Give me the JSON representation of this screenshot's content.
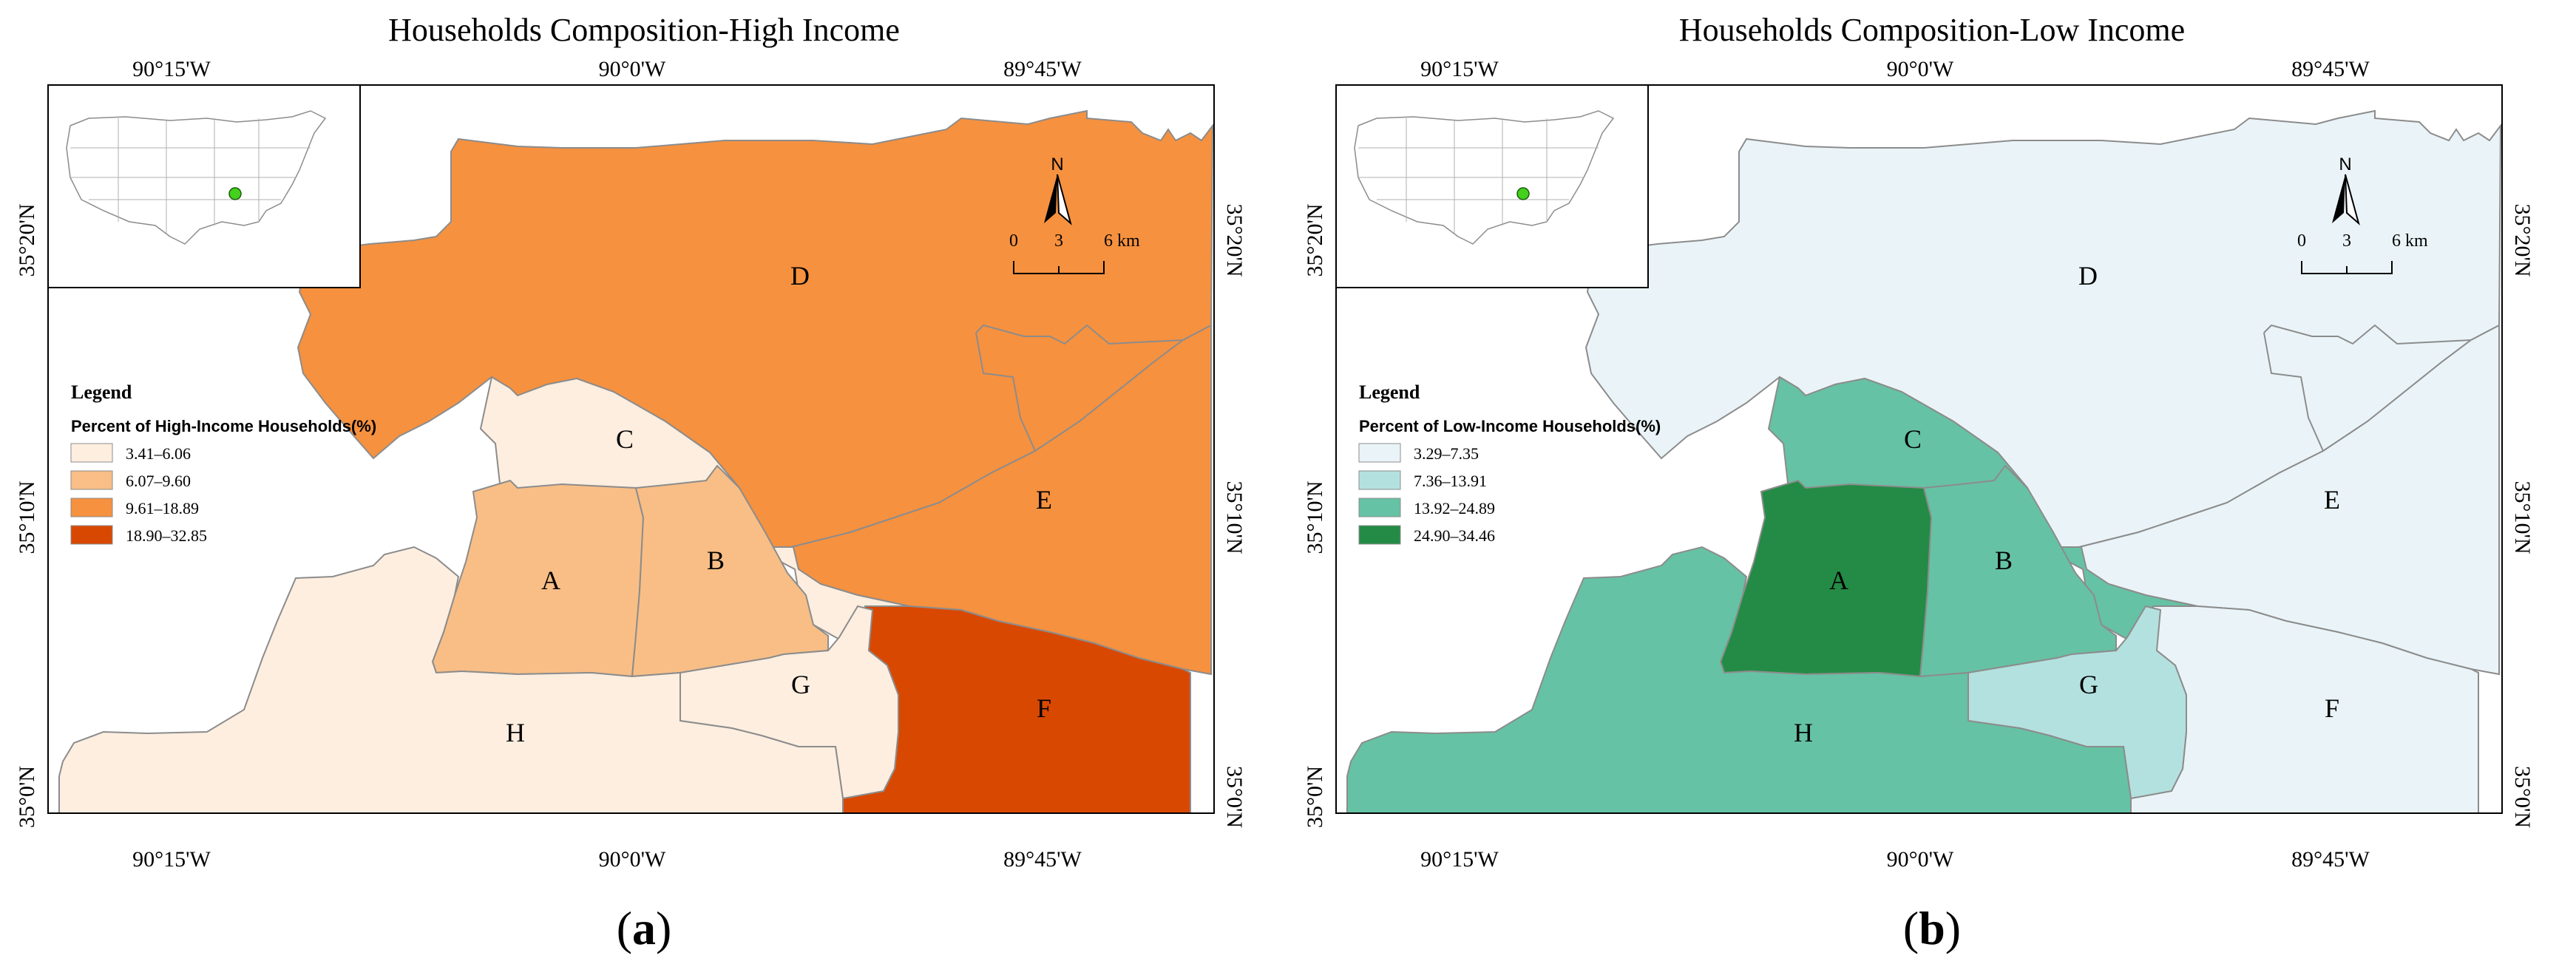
{
  "panels": [
    {
      "id": "a",
      "title": "Households Composition-High Income",
      "caption_open": "(",
      "caption_letter": "a",
      "caption_close": ")",
      "top_ticks": [
        "90°15'W",
        "90°0'W",
        "89°45'W"
      ],
      "bottom_ticks": [
        "90°15'W",
        "90°0'W",
        "89°45'W"
      ],
      "left_ticks": [
        "35°20'N",
        "35°10'N",
        "35°0'N"
      ],
      "right_ticks": [
        "35°20'N",
        "35°10'N",
        "35°0'N"
      ],
      "legend_title": "Legend",
      "legend_subtitle": "Percent of High-Income Households(%)",
      "legend_items": [
        {
          "label": "3.41–6.06",
          "color": "#fdeee0"
        },
        {
          "label": "6.07–9.60",
          "color": "#f8be86"
        },
        {
          "label": "9.61–18.89",
          "color": "#f6913f"
        },
        {
          "label": "18.90–32.85",
          "color": "#d94801"
        }
      ],
      "zone_colors": {
        "A": "#f8be86",
        "B": "#f8be86",
        "C": "#fdeee0",
        "D": "#f6913f",
        "E": "#f6913f",
        "F": "#d94801",
        "G": "#fdeee0",
        "H": "#fdeee0"
      },
      "zone_labels": [
        "A",
        "B",
        "C",
        "D",
        "E",
        "F",
        "G",
        "H"
      ],
      "north": "N",
      "scale_labels": [
        "0",
        "3",
        "6 km"
      ]
    },
    {
      "id": "b",
      "title": "Households Composition-Low Income",
      "caption_open": "(",
      "caption_letter": "b",
      "caption_close": ")",
      "top_ticks": [
        "90°15'W",
        "90°0'W",
        "89°45'W"
      ],
      "bottom_ticks": [
        "90°15'W",
        "90°0'W",
        "89°45'W"
      ],
      "left_ticks": [
        "35°20'N",
        "35°10'N",
        "35°0'N"
      ],
      "right_ticks": [
        "35°20'N",
        "35°10'N",
        "35°0'N"
      ],
      "legend_title": "Legend",
      "legend_subtitle": "Percent of Low-Income Households(%)",
      "legend_items": [
        {
          "label": "3.29–7.35",
          "color": "#eaf4f8"
        },
        {
          "label": "7.36–13.91",
          "color": "#b3e1df"
        },
        {
          "label": "13.92–24.89",
          "color": "#66c2a4"
        },
        {
          "label": "24.90–34.46",
          "color": "#238b45"
        }
      ],
      "zone_colors": {
        "A": "#238b45",
        "B": "#66c2a4",
        "C": "#66c2a4",
        "D": "#eaf4f8",
        "E": "#eaf4f8",
        "F": "#eaf4f8",
        "G": "#b3e1df",
        "H": "#66c2a4"
      },
      "zone_labels": [
        "A",
        "B",
        "C",
        "D",
        "E",
        "F",
        "G",
        "H"
      ],
      "north": "N",
      "scale_labels": [
        "0",
        "3",
        "6 km"
      ]
    }
  ],
  "map_border_color": "#000000",
  "boundary_color": "#8c8c8c",
  "inset_marker_color": "#43d11c"
}
